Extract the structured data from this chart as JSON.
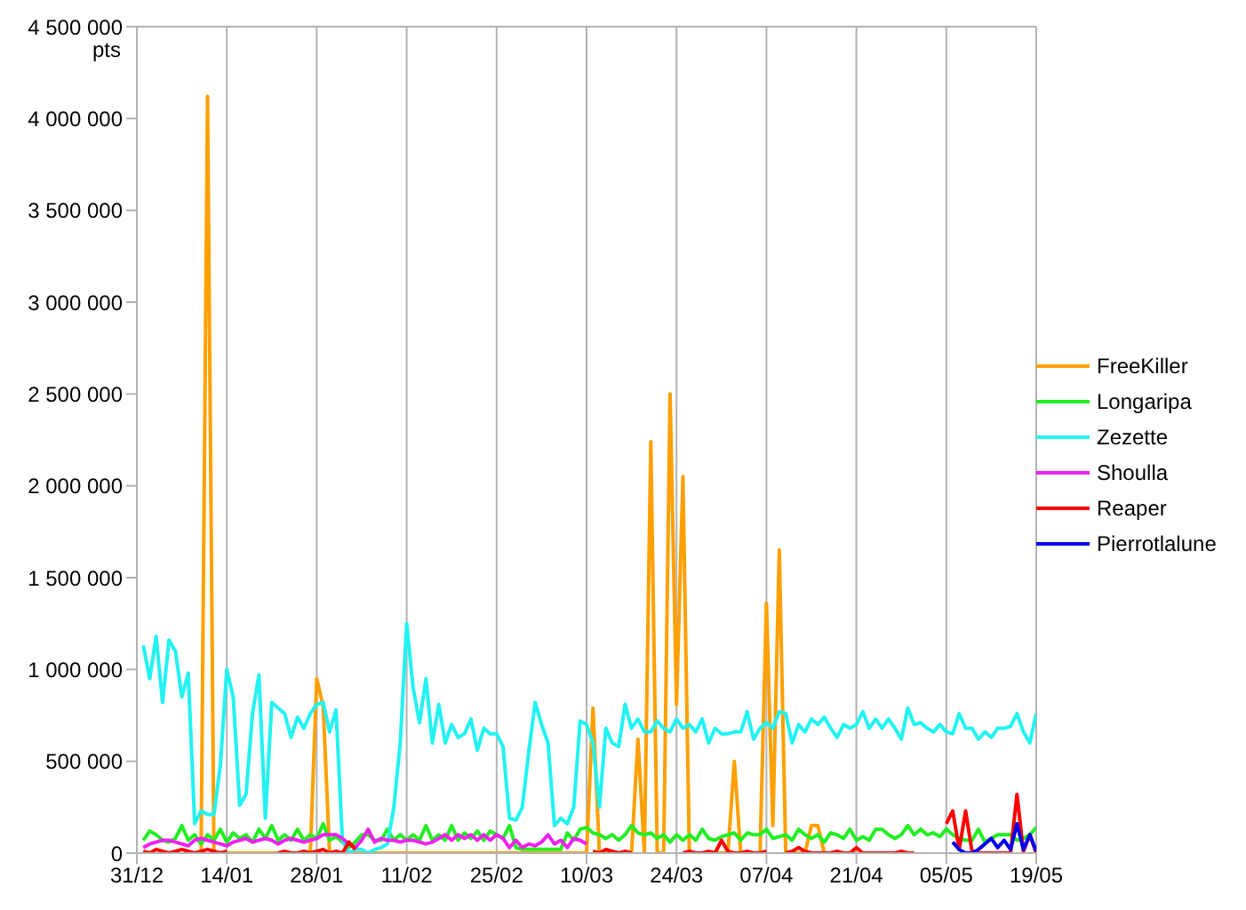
{
  "chart_data": {
    "type": "line",
    "ylabel": "pts",
    "categories": [
      "31/12",
      null,
      null,
      null,
      null,
      null,
      null,
      null,
      null,
      null,
      null,
      null,
      null,
      null,
      "14/01",
      null,
      null,
      null,
      null,
      null,
      null,
      null,
      null,
      null,
      null,
      null,
      null,
      null,
      "28/01",
      null,
      null,
      null,
      null,
      null,
      null,
      null,
      null,
      null,
      null,
      null,
      null,
      null,
      "11/02",
      null,
      null,
      null,
      null,
      null,
      null,
      null,
      null,
      null,
      null,
      null,
      null,
      null,
      "25/02",
      null,
      null,
      null,
      null,
      null,
      null,
      null,
      null,
      null,
      null,
      null,
      null,
      null,
      "10/03",
      null,
      null,
      null,
      null,
      null,
      null,
      null,
      null,
      null,
      null,
      null,
      null,
      null,
      "24/03",
      null,
      null,
      null,
      null,
      null,
      null,
      null,
      null,
      null,
      null,
      null,
      null,
      null,
      "07/04",
      null,
      null,
      null,
      null,
      null,
      null,
      null,
      null,
      null,
      null,
      null,
      null,
      null,
      "21/04",
      null,
      null,
      null,
      null,
      null,
      null,
      null,
      null,
      null,
      null,
      null,
      null,
      null,
      "05/05",
      null,
      null,
      null,
      null,
      null,
      null,
      null,
      null,
      null,
      null,
      null,
      null,
      null,
      "19/05"
    ],
    "series": [
      {
        "name": "FreeKiller",
        "color": "#ffa000",
        "values": [
          null,
          null,
          null,
          null,
          null,
          null,
          null,
          null,
          null,
          0,
          0,
          4120000,
          0,
          0,
          0,
          0,
          0,
          0,
          0,
          0,
          0,
          0,
          0,
          0,
          0,
          0,
          0,
          0,
          950000,
          800000,
          0,
          0,
          0,
          0,
          0,
          0,
          0,
          0,
          0,
          0,
          0,
          0,
          0,
          0,
          0,
          0,
          0,
          0,
          0,
          0,
          0,
          0,
          0,
          0,
          0,
          0,
          0,
          0,
          0,
          0,
          0,
          0,
          0,
          0,
          0,
          0,
          0,
          0,
          0,
          0,
          0,
          790000,
          0,
          0,
          0,
          0,
          0,
          0,
          620000,
          0,
          2240000,
          0,
          0,
          2500000,
          810000,
          2050000,
          0,
          0,
          0,
          0,
          0,
          0,
          0,
          500000,
          0,
          0,
          0,
          0,
          1360000,
          150000,
          1650000,
          0,
          0,
          0,
          0,
          150000,
          150000,
          0,
          0,
          0,
          0,
          0,
          0,
          null,
          null,
          null,
          null,
          null,
          null,
          null,
          null,
          null,
          null,
          null,
          null,
          null,
          null,
          null,
          null,
          null,
          null,
          null,
          null,
          null,
          null,
          null,
          null,
          null,
          null,
          null,
          null
        ]
      },
      {
        "name": "Longaripa",
        "color": "#22ee22",
        "values": [
          null,
          70000,
          120000,
          100000,
          70000,
          60000,
          80000,
          150000,
          70000,
          100000,
          50000,
          100000,
          70000,
          130000,
          60000,
          110000,
          80000,
          100000,
          60000,
          130000,
          80000,
          150000,
          70000,
          100000,
          70000,
          130000,
          70000,
          100000,
          80000,
          160000,
          70000,
          90000,
          60000,
          30000,
          60000,
          100000,
          100000,
          70000,
          70000,
          130000,
          70000,
          100000,
          70000,
          100000,
          70000,
          150000,
          70000,
          100000,
          70000,
          150000,
          70000,
          110000,
          80000,
          120000,
          70000,
          120000,
          100000,
          80000,
          150000,
          30000,
          20000,
          20000,
          20000,
          20000,
          20000,
          20000,
          20000,
          110000,
          70000,
          130000,
          140000,
          110000,
          100000,
          80000,
          100000,
          70000,
          100000,
          150000,
          110000,
          100000,
          110000,
          80000,
          100000,
          60000,
          100000,
          70000,
          100000,
          70000,
          130000,
          80000,
          70000,
          90000,
          100000,
          110000,
          70000,
          110000,
          100000,
          100000,
          130000,
          80000,
          90000,
          100000,
          70000,
          130000,
          100000,
          80000,
          100000,
          60000,
          110000,
          100000,
          80000,
          130000,
          70000,
          90000,
          70000,
          130000,
          130000,
          100000,
          80000,
          100000,
          150000,
          100000,
          130000,
          100000,
          110000,
          90000,
          130000,
          100000,
          80000,
          70000,
          70000,
          130000,
          60000,
          80000,
          100000,
          100000,
          100000,
          70000,
          80000,
          100000,
          140000
        ]
      },
      {
        "name": "Zezette",
        "color": "#22f2f2",
        "values": [
          null,
          1130000,
          950000,
          1180000,
          820000,
          1160000,
          1100000,
          850000,
          980000,
          160000,
          230000,
          210000,
          210000,
          480000,
          1000000,
          850000,
          260000,
          320000,
          760000,
          970000,
          190000,
          820000,
          790000,
          760000,
          630000,
          740000,
          680000,
          760000,
          810000,
          820000,
          660000,
          780000,
          70000,
          0,
          20000,
          20000,
          0,
          20000,
          30000,
          50000,
          250000,
          600000,
          1250000,
          900000,
          710000,
          950000,
          600000,
          810000,
          600000,
          700000,
          630000,
          650000,
          730000,
          560000,
          680000,
          650000,
          650000,
          580000,
          190000,
          180000,
          250000,
          550000,
          820000,
          700000,
          600000,
          150000,
          190000,
          160000,
          250000,
          720000,
          700000,
          600000,
          250000,
          680000,
          600000,
          580000,
          810000,
          680000,
          730000,
          660000,
          660000,
          720000,
          680000,
          660000,
          730000,
          680000,
          700000,
          660000,
          730000,
          600000,
          680000,
          650000,
          650000,
          660000,
          660000,
          770000,
          620000,
          680000,
          710000,
          680000,
          770000,
          760000,
          600000,
          700000,
          660000,
          730000,
          700000,
          740000,
          680000,
          630000,
          700000,
          680000,
          700000,
          770000,
          680000,
          730000,
          680000,
          730000,
          680000,
          620000,
          790000,
          700000,
          710000,
          680000,
          660000,
          700000,
          660000,
          650000,
          760000,
          680000,
          680000,
          620000,
          660000,
          630000,
          680000,
          680000,
          690000,
          760000,
          660000,
          600000,
          760000
        ]
      },
      {
        "name": "Shoulla",
        "color": "#ee22ee",
        "values": [
          null,
          30000,
          50000,
          60000,
          70000,
          70000,
          60000,
          50000,
          40000,
          70000,
          80000,
          70000,
          60000,
          50000,
          40000,
          60000,
          70000,
          80000,
          60000,
          70000,
          80000,
          70000,
          50000,
          70000,
          80000,
          70000,
          60000,
          70000,
          80000,
          100000,
          100000,
          100000,
          80000,
          50000,
          30000,
          70000,
          130000,
          60000,
          80000,
          70000,
          70000,
          60000,
          70000,
          70000,
          60000,
          50000,
          60000,
          80000,
          100000,
          70000,
          100000,
          80000,
          100000,
          70000,
          100000,
          70000,
          100000,
          80000,
          30000,
          70000,
          30000,
          50000,
          40000,
          60000,
          100000,
          50000,
          70000,
          30000,
          80000,
          70000,
          50000,
          null,
          null,
          null,
          null,
          null,
          null,
          null,
          null,
          null,
          null,
          null,
          null,
          null,
          null,
          null,
          null,
          null,
          null,
          null,
          null,
          null,
          null,
          null,
          null,
          null,
          null,
          null,
          null,
          null,
          null,
          null,
          null,
          null,
          null,
          null,
          null,
          null,
          null,
          null,
          null,
          null,
          null,
          null,
          null,
          null,
          null,
          null,
          null,
          null,
          null,
          null,
          null,
          null,
          null,
          null,
          null,
          null,
          null,
          null,
          null,
          null,
          null,
          null,
          null,
          null,
          null,
          null,
          null,
          null,
          null
        ]
      },
      {
        "name": "Reaper",
        "color": "#ff0000",
        "values": [
          null,
          10000,
          0,
          20000,
          10000,
          0,
          10000,
          20000,
          10000,
          0,
          10000,
          20000,
          10000,
          0,
          10000,
          null,
          null,
          null,
          null,
          null,
          null,
          null,
          0,
          10000,
          0,
          0,
          10000,
          0,
          10000,
          20000,
          0,
          10000,
          0,
          60000,
          20000,
          null,
          null,
          null,
          null,
          null,
          null,
          null,
          null,
          null,
          null,
          null,
          null,
          null,
          null,
          null,
          null,
          null,
          null,
          null,
          null,
          null,
          null,
          null,
          null,
          null,
          null,
          null,
          null,
          null,
          null,
          null,
          null,
          null,
          null,
          null,
          null,
          10000,
          0,
          20000,
          10000,
          0,
          10000,
          0,
          null,
          null,
          null,
          null,
          null,
          null,
          null,
          0,
          10000,
          0,
          0,
          10000,
          0,
          70000,
          10000,
          0,
          0,
          10000,
          0,
          0,
          10000,
          null,
          null,
          0,
          10000,
          30000,
          10000,
          0,
          0,
          0,
          0,
          10000,
          0,
          0,
          30000,
          0,
          0,
          0,
          0,
          0,
          0,
          10000,
          0,
          0,
          null,
          null,
          null,
          null,
          160000,
          230000,
          20000,
          230000,
          10000,
          0,
          0,
          0,
          0,
          0,
          0,
          320000,
          10000,
          100000,
          0
        ]
      },
      {
        "name": "Pierrotlalune",
        "color": "#0000ee",
        "values": [
          null,
          null,
          null,
          null,
          null,
          null,
          null,
          null,
          null,
          null,
          null,
          null,
          null,
          null,
          null,
          null,
          null,
          null,
          null,
          null,
          null,
          null,
          null,
          null,
          null,
          null,
          null,
          null,
          null,
          null,
          null,
          null,
          null,
          null,
          null,
          null,
          null,
          null,
          null,
          null,
          null,
          null,
          null,
          null,
          null,
          null,
          null,
          null,
          null,
          null,
          null,
          null,
          null,
          null,
          null,
          null,
          null,
          null,
          null,
          null,
          null,
          null,
          null,
          null,
          null,
          null,
          null,
          null,
          null,
          null,
          null,
          null,
          null,
          null,
          null,
          null,
          null,
          null,
          null,
          null,
          null,
          null,
          null,
          null,
          null,
          null,
          null,
          null,
          null,
          null,
          null,
          null,
          null,
          null,
          null,
          null,
          null,
          null,
          null,
          null,
          null,
          null,
          null,
          null,
          null,
          null,
          null,
          null,
          null,
          null,
          null,
          null,
          null,
          null,
          null,
          null,
          null,
          null,
          null,
          null,
          null,
          null,
          null,
          null,
          null,
          null,
          null,
          60000,
          20000,
          0,
          0,
          20000,
          50000,
          80000,
          30000,
          70000,
          20000,
          160000,
          20000,
          100000,
          10000
        ]
      }
    ],
    "ylim": [
      0,
      4500000
    ],
    "yticks": [
      0,
      {
        "value": 500000,
        "label": "500 000"
      },
      {
        "value": 1000000,
        "label": "1 000 000"
      },
      {
        "value": 1500000,
        "label": "1 500 000"
      },
      {
        "value": 2000000,
        "label": "2 000 000"
      },
      {
        "value": 2500000,
        "label": "2 500 000"
      },
      {
        "value": 3000000,
        "label": "3 000 000"
      },
      {
        "value": 3500000,
        "label": "3 500 000"
      },
      {
        "value": 4000000,
        "label": "4 000 000"
      },
      {
        "value": 4500000,
        "label": "4 500 000"
      }
    ],
    "grid": true,
    "legend": "right"
  }
}
